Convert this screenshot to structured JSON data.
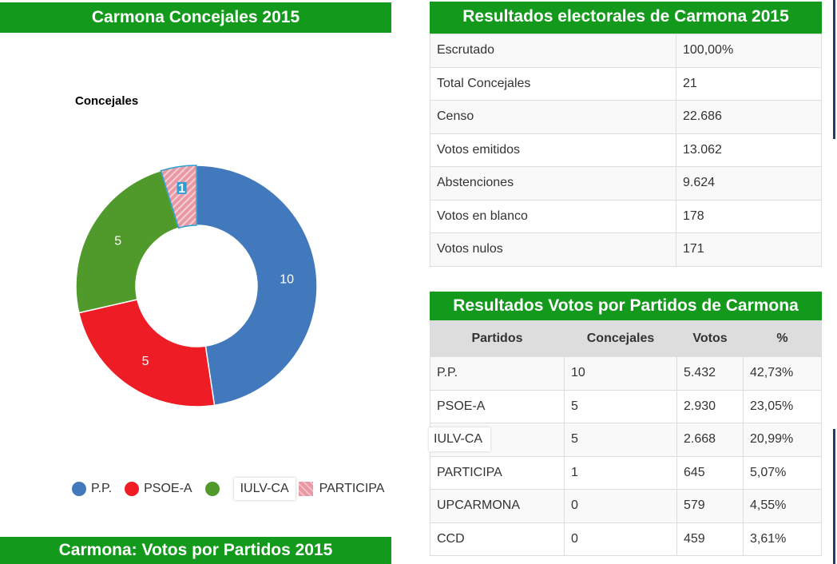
{
  "headers": {
    "left_top": "Carmona Concejales 2015",
    "left_bottom": "Carmona: Votos por Partidos 2015",
    "right_top": "Resultados electorales de Carmona 2015",
    "right_mid": "Resultados Votos por Partidos de Carmona"
  },
  "summary": [
    {
      "label": "Escrutado",
      "value": "100,00%"
    },
    {
      "label": "Total Concejales",
      "value": "21"
    },
    {
      "label": "Censo",
      "value": "22.686"
    },
    {
      "label": "Votos emitidos",
      "value": "13.062"
    },
    {
      "label": "Abstenciones",
      "value": "9.624"
    },
    {
      "label": "Votos en blanco",
      "value": "178"
    },
    {
      "label": "Votos nulos",
      "value": "171"
    }
  ],
  "parties_table": {
    "columns": [
      "Partidos",
      "Concejales",
      "Votos",
      "%"
    ],
    "rows": [
      [
        "P.P.",
        "10",
        "5.432",
        "42,73%"
      ],
      [
        "PSOE-A",
        "5",
        "2.930",
        "23,05%"
      ],
      [
        "IULV-CA",
        "5",
        "2.668",
        "20,99%"
      ],
      [
        "PARTICIPA",
        "1",
        "645",
        "5,07%"
      ],
      [
        "UPCARMONA",
        "0",
        "579",
        "4,55%"
      ],
      [
        "CCD",
        "0",
        "459",
        "3,61%"
      ]
    ]
  },
  "chart_data": {
    "type": "pie",
    "title": "Concejales",
    "donut": true,
    "legend_position": "bottom",
    "categories": [
      "P.P.",
      "PSOE-A",
      "IULV-CA",
      "PARTICIPA"
    ],
    "values": [
      10,
      5,
      5,
      1
    ],
    "colors": [
      "#4279bc",
      "#ee1c25",
      "#4f9a2a",
      "#e899a4"
    ]
  }
}
